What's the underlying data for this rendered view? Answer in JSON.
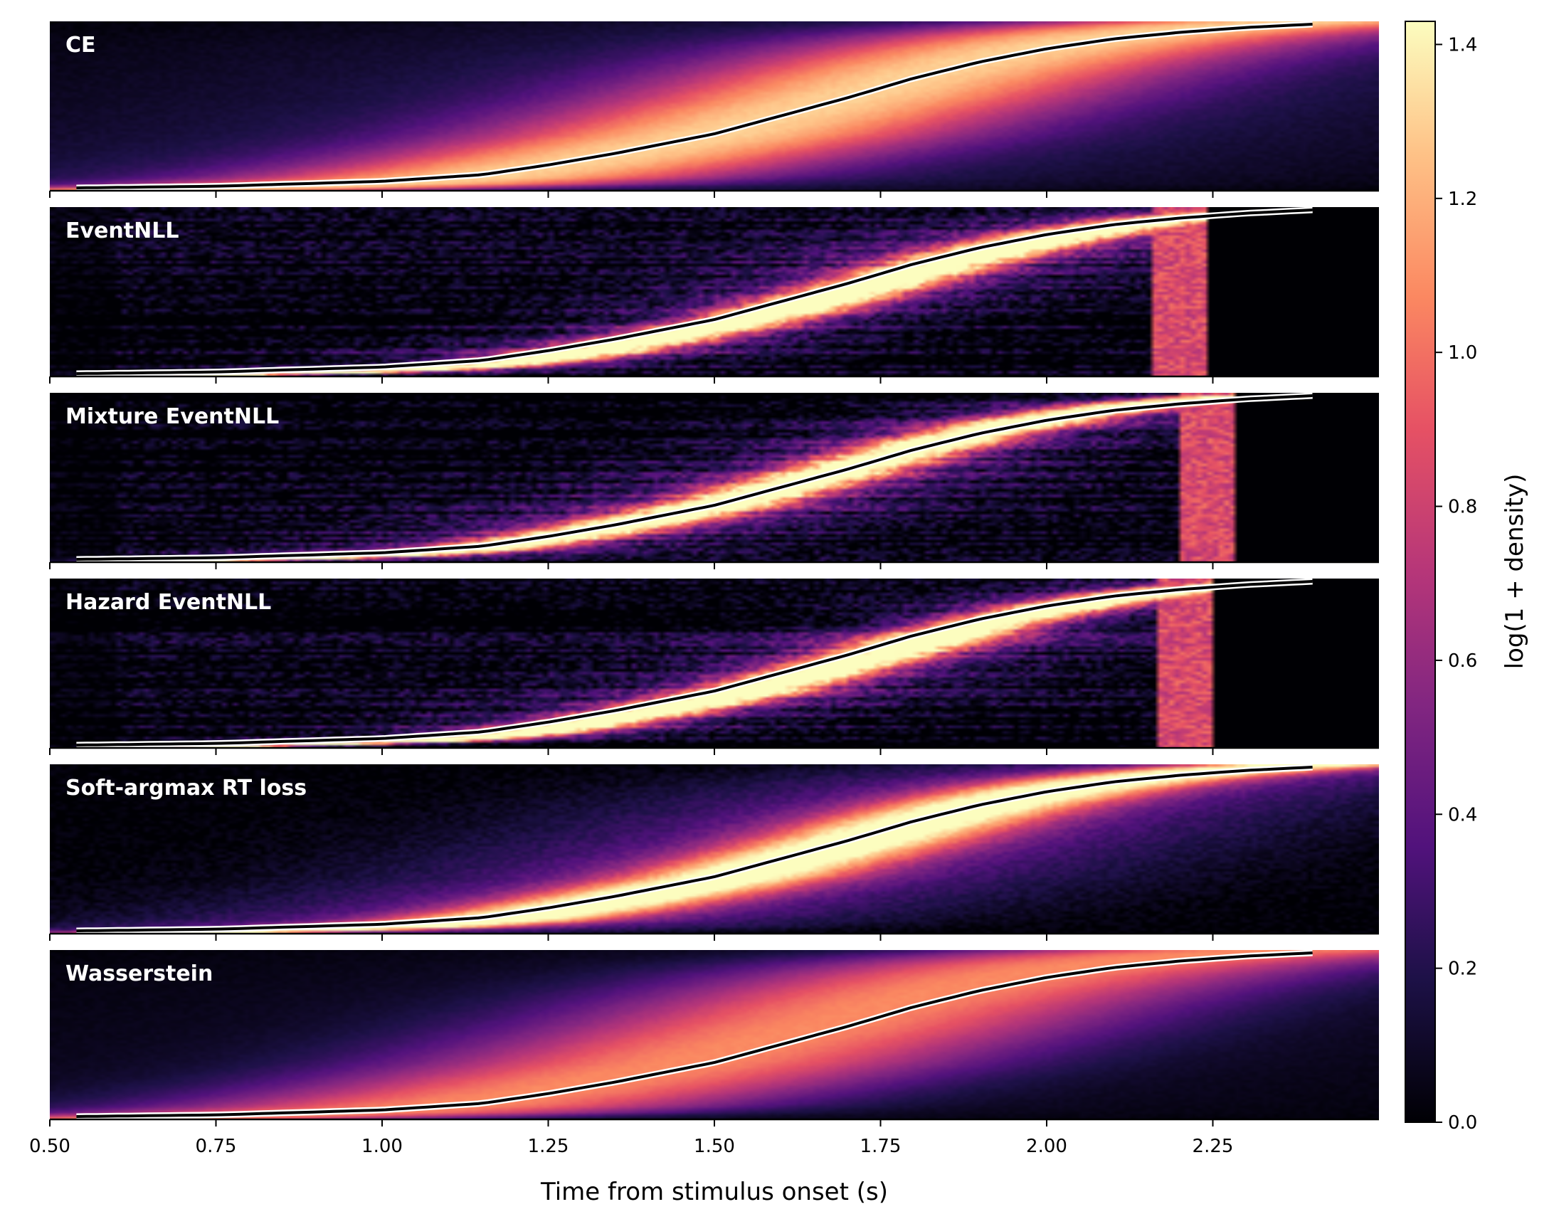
{
  "chart_data": {
    "type": "heatmap",
    "xlabel": "Time from stimulus onset (s)",
    "xlim": [
      0.5,
      2.5
    ],
    "xticks": [
      0.5,
      0.75,
      1.0,
      1.25,
      1.5,
      1.75,
      2.0,
      2.25
    ],
    "xtick_labels": [
      "0.50",
      "0.75",
      "1.00",
      "1.25",
      "1.50",
      "1.75",
      "2.00",
      "2.25"
    ],
    "colormap": "magma",
    "colorbar": {
      "label": "log(1 + density)",
      "range": [
        0.0,
        1.43
      ],
      "ticks": [
        0.0,
        0.2,
        0.4,
        0.6,
        0.8,
        1.0,
        1.2,
        1.4
      ],
      "tick_labels": [
        "0.0",
        "0.2",
        "0.4",
        "0.6",
        "0.8",
        "1.0",
        "1.2",
        "1.4"
      ]
    },
    "overlay_curve": {
      "description_shown": "observed RT cumulative curve, black line with white outline",
      "x": [
        0.54,
        0.75,
        1.0,
        1.15,
        1.25,
        1.35,
        1.5,
        1.6,
        1.7,
        1.8,
        1.9,
        2.0,
        2.1,
        2.2,
        2.3,
        2.4
      ],
      "y_fraction": [
        0.0,
        0.01,
        0.04,
        0.08,
        0.14,
        0.21,
        0.33,
        0.44,
        0.55,
        0.67,
        0.77,
        0.85,
        0.91,
        0.95,
        0.98,
        1.0
      ]
    },
    "panels": [
      {
        "title": "CE",
        "mode": "smooth",
        "shift": 0.0,
        "spread": 0.26,
        "peak": 1.08,
        "floor": 0.22,
        "noise": 0.04,
        "cutoff": null
      },
      {
        "title": "EventNLL",
        "mode": "noisy",
        "shift": 0.05,
        "spread": 0.07,
        "peak": 1.42,
        "floor": 0.35,
        "noise": 0.22,
        "cutoff": 2.24
      },
      {
        "title": "Mixture EventNLL",
        "mode": "noisy",
        "shift": 0.0,
        "spread": 0.07,
        "peak": 1.4,
        "floor": 0.38,
        "noise": 0.22,
        "cutoff": 2.28
      },
      {
        "title": "Hazard EventNLL",
        "mode": "noisy",
        "shift": 0.05,
        "spread": 0.07,
        "peak": 1.42,
        "floor": 0.33,
        "noise": 0.22,
        "cutoff": 2.25
      },
      {
        "title": "Soft-argmax RT loss",
        "mode": "smooth",
        "shift": 0.02,
        "spread": 0.12,
        "peak": 1.18,
        "floor": 0.45,
        "noise": 0.1,
        "cutoff": null
      },
      {
        "title": "Wasserstein",
        "mode": "smooth",
        "shift": -0.05,
        "spread": 0.3,
        "peak": 0.98,
        "floor": 0.1,
        "noise": 0.03,
        "cutoff": null
      }
    ]
  }
}
